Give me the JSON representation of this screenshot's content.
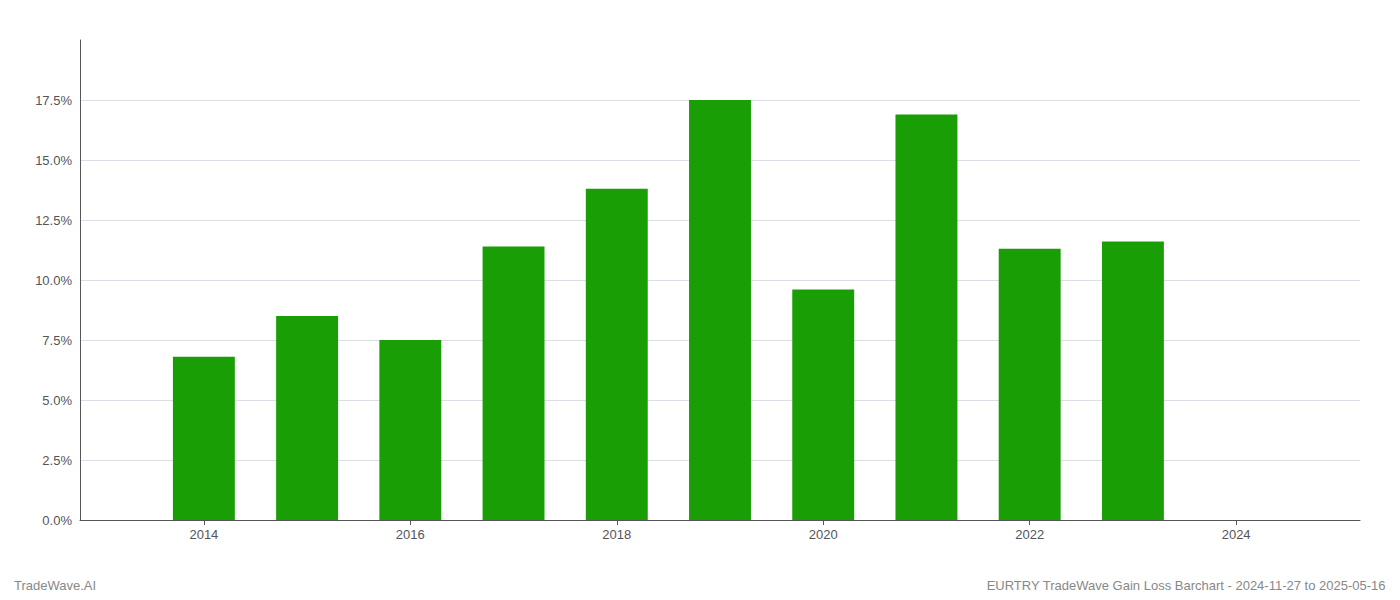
{
  "chart_data": {
    "type": "bar",
    "x": [
      2014,
      2015,
      2016,
      2017,
      2018,
      2019,
      2020,
      2021,
      2022,
      2023
    ],
    "values": [
      0.068,
      0.085,
      0.075,
      0.114,
      0.138,
      0.175,
      0.096,
      0.169,
      0.113,
      0.116
    ],
    "color": "#1a9e06",
    "xlim": [
      2012.8,
      2025.2
    ],
    "xticks": [
      2014,
      2016,
      2018,
      2020,
      2022,
      2024
    ],
    "ylim": [
      0,
      0.2
    ],
    "yticks": [
      {
        "value": 0.0,
        "label": "0.0%"
      },
      {
        "value": 0.025,
        "label": "2.5%"
      },
      {
        "value": 0.05,
        "label": "5.0%"
      },
      {
        "value": 0.075,
        "label": "7.5%"
      },
      {
        "value": 0.1,
        "label": "10.0%"
      },
      {
        "value": 0.125,
        "label": "12.5%"
      },
      {
        "value": 0.15,
        "label": "15.0%"
      },
      {
        "value": 0.175,
        "label": "17.5%"
      }
    ],
    "grid": true,
    "annotations": [
      "TradeWave.AI",
      "EURTRY TradeWave Gain Loss Barchart - 2024-11-27 to 2025-05-16"
    ]
  }
}
